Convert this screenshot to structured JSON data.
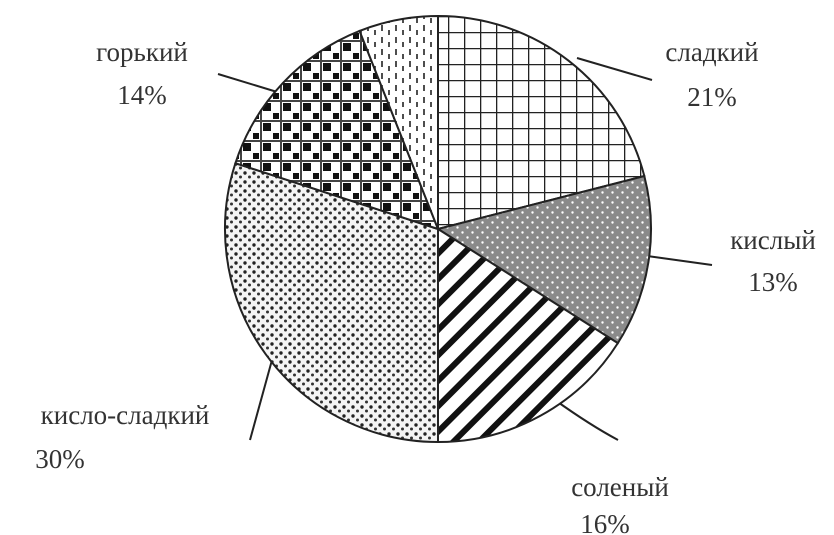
{
  "chart_data": {
    "type": "pie",
    "categories": [
      "сладкий",
      "кислый",
      "соленый",
      "кисло-сладкий",
      "горький",
      null
    ],
    "values": [
      21,
      13,
      16,
      30,
      14,
      6
    ],
    "value_labels": [
      "21%",
      "13%",
      "16%",
      "30%",
      "14%",
      null
    ]
  }
}
